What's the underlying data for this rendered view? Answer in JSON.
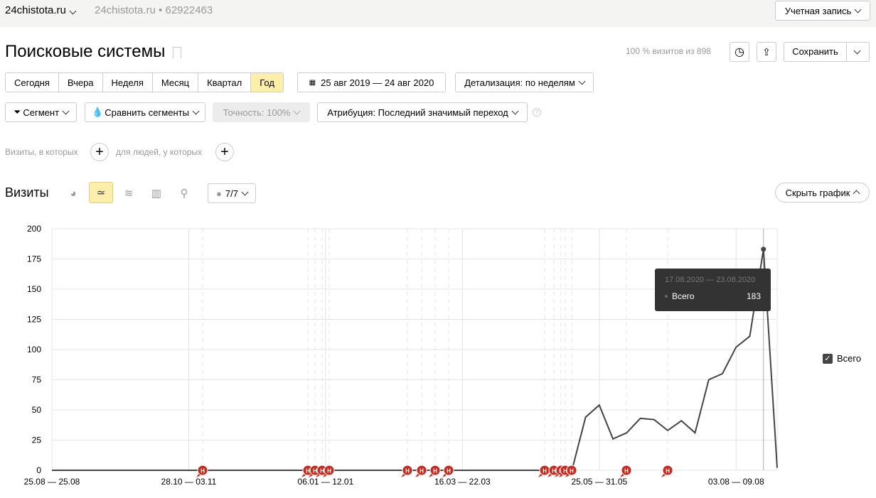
{
  "topbar": {
    "site": "24chistota.ru",
    "site_name": "24chistota.ru",
    "counter_id": "62922463",
    "account": "Учетная запись"
  },
  "header": {
    "title": "Поисковые системы",
    "visits_info": "100 % визитов из 898",
    "save": "Сохранить"
  },
  "periods": [
    {
      "label": "Сегодня"
    },
    {
      "label": "Вчера"
    },
    {
      "label": "Неделя"
    },
    {
      "label": "Месяц"
    },
    {
      "label": "Квартал"
    },
    {
      "label": "Год",
      "active": true
    }
  ],
  "date_range": "25 авг 2019 — 24 авг 2020",
  "detail": "Детализация: по неделям",
  "filters": {
    "segment": "Сегмент",
    "compare": "Сравнить сегменты",
    "accuracy": "Точность: 100%",
    "attribution": "Атрибуция: Последний значимый переход",
    "help": "?"
  },
  "conditions": {
    "visits": "Визиты, в которых",
    "people": "для людей, у которых"
  },
  "chart_section": {
    "title": "Визиты",
    "annotations": "7/7",
    "hide": "Скрыть график"
  },
  "tooltip": {
    "period": "17.08.2020 — 23.08.2020",
    "series": "Всего",
    "value": "183"
  },
  "annotation_marker": "Н",
  "chart_data": {
    "type": "line",
    "ylim": [
      0,
      200
    ],
    "yticks": [
      0,
      25,
      50,
      75,
      100,
      125,
      150,
      175,
      200
    ],
    "xtick_labels": [
      {
        "index": 0,
        "label": "25.08 — 25.08"
      },
      {
        "index": 10,
        "label": "28.10 — 03.11"
      },
      {
        "index": 20,
        "label": "06.01 — 12.01"
      },
      {
        "index": 30,
        "label": "16.03 — 22.03"
      },
      {
        "index": 40,
        "label": "25.05 — 31.05"
      },
      {
        "index": 50,
        "label": "03.08 — 09.08"
      }
    ],
    "legend": "right",
    "series": [
      {
        "name": "Всего",
        "color": "#444444",
        "values": [
          0,
          0,
          0,
          0,
          0,
          0,
          0,
          0,
          0,
          0,
          0,
          0,
          0,
          0,
          0,
          0,
          0,
          0,
          0,
          0,
          0,
          0,
          0,
          0,
          0,
          0,
          0,
          0,
          0,
          0,
          0,
          0,
          0,
          0,
          0,
          0,
          0,
          0,
          0,
          44,
          54,
          26,
          31,
          43,
          42,
          33,
          41,
          31,
          75,
          80,
          102,
          111,
          183,
          2
        ]
      }
    ]
  }
}
